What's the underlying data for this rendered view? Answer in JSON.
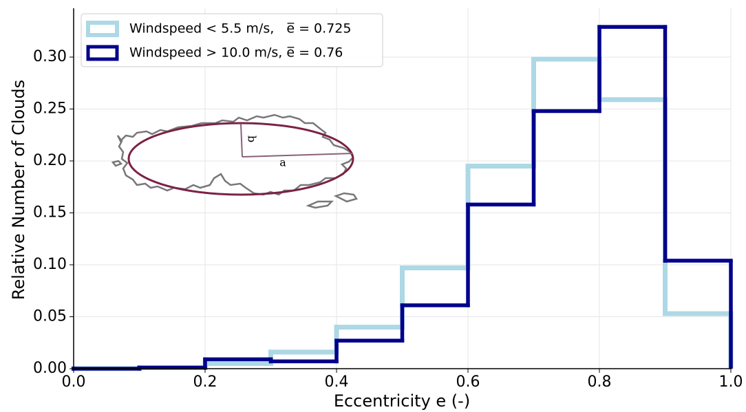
{
  "chart_data": {
    "type": "step-histogram",
    "xlabel": "Eccentricity e (-)",
    "ylabel": "Relative Number of Clouds",
    "bins": [
      0.0,
      0.1,
      0.2,
      0.3,
      0.4,
      0.5,
      0.6,
      0.7,
      0.8,
      0.9,
      1.0
    ],
    "series": [
      {
        "name": "Windspeed < 5.5 m/s,   e̅ = 0.725",
        "color": "#add8e6",
        "values": [
          0,
          0.001,
          0.005,
          0.016,
          0.04,
          0.097,
          0.195,
          0.298,
          0.259,
          0.053
        ]
      },
      {
        "name": "Windspeed > 10.0 m/s, e̅ = 0.76",
        "color": "#00008b",
        "values": [
          0,
          0.001,
          0.009,
          0.007,
          0.027,
          0.061,
          0.158,
          0.248,
          0.329,
          0.104
        ]
      }
    ],
    "xlim": [
      0,
      1
    ],
    "ylim": [
      0,
      0.347
    ],
    "xticks": [
      {
        "value": 0,
        "label": "0.0"
      },
      0.2,
      0.4,
      0.6,
      0.8,
      {
        "value": 1,
        "label": "1.0"
      }
    ],
    "yticks": [
      {
        "value": 0,
        "label": "0.00"
      },
      {
        "value": 0.05,
        "label": "0.05"
      },
      {
        "value": 0.1,
        "label": "0.10"
      },
      {
        "value": 0.15,
        "label": "0.15"
      },
      {
        "value": 0.2,
        "label": "0.20"
      },
      {
        "value": 0.25,
        "label": "0.25"
      },
      {
        "value": 0.3,
        "label": "0.30"
      }
    ],
    "grid": true,
    "legend": "upper left",
    "annotations": [
      "a",
      "b"
    ]
  }
}
